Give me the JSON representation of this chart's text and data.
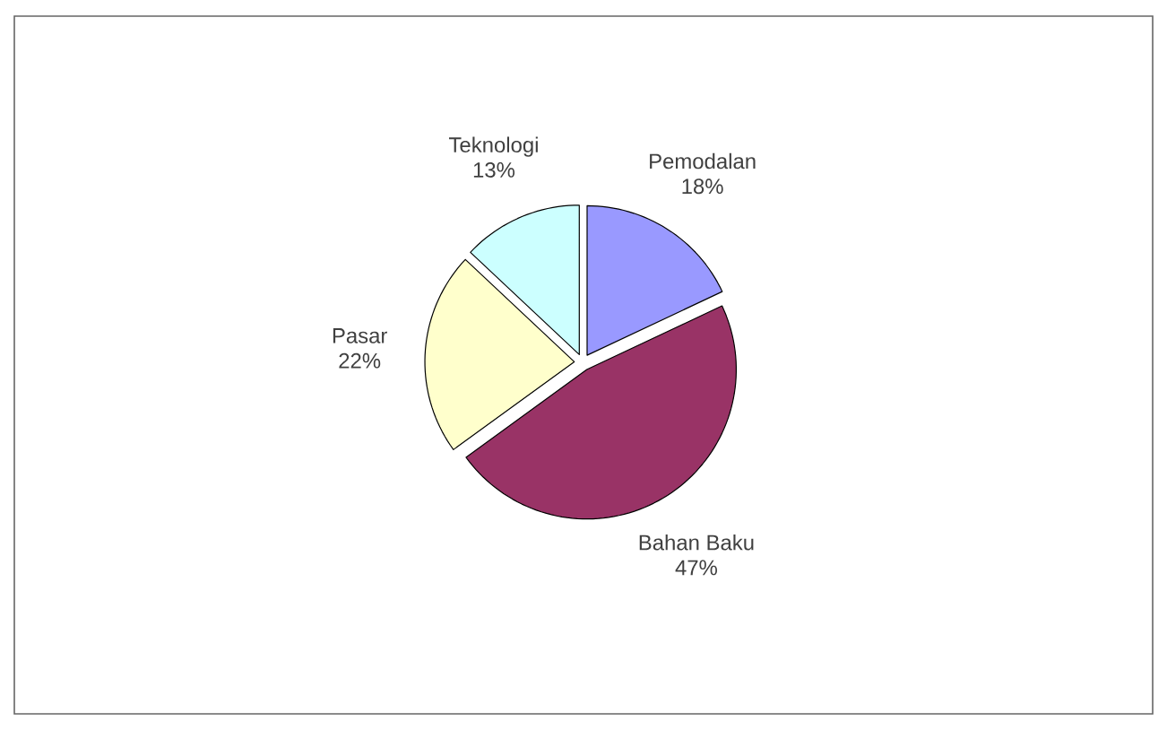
{
  "chart_data": {
    "type": "pie",
    "categories": [
      "Pemodalan",
      "Bahan Baku",
      "Pasar",
      "Teknologi"
    ],
    "values": [
      18,
      47,
      22,
      13
    ],
    "value_labels": [
      "18%",
      "47%",
      "22%",
      "13%"
    ],
    "colors": [
      "#9999ff",
      "#993366",
      "#ffffcc",
      "#ccffff"
    ]
  }
}
